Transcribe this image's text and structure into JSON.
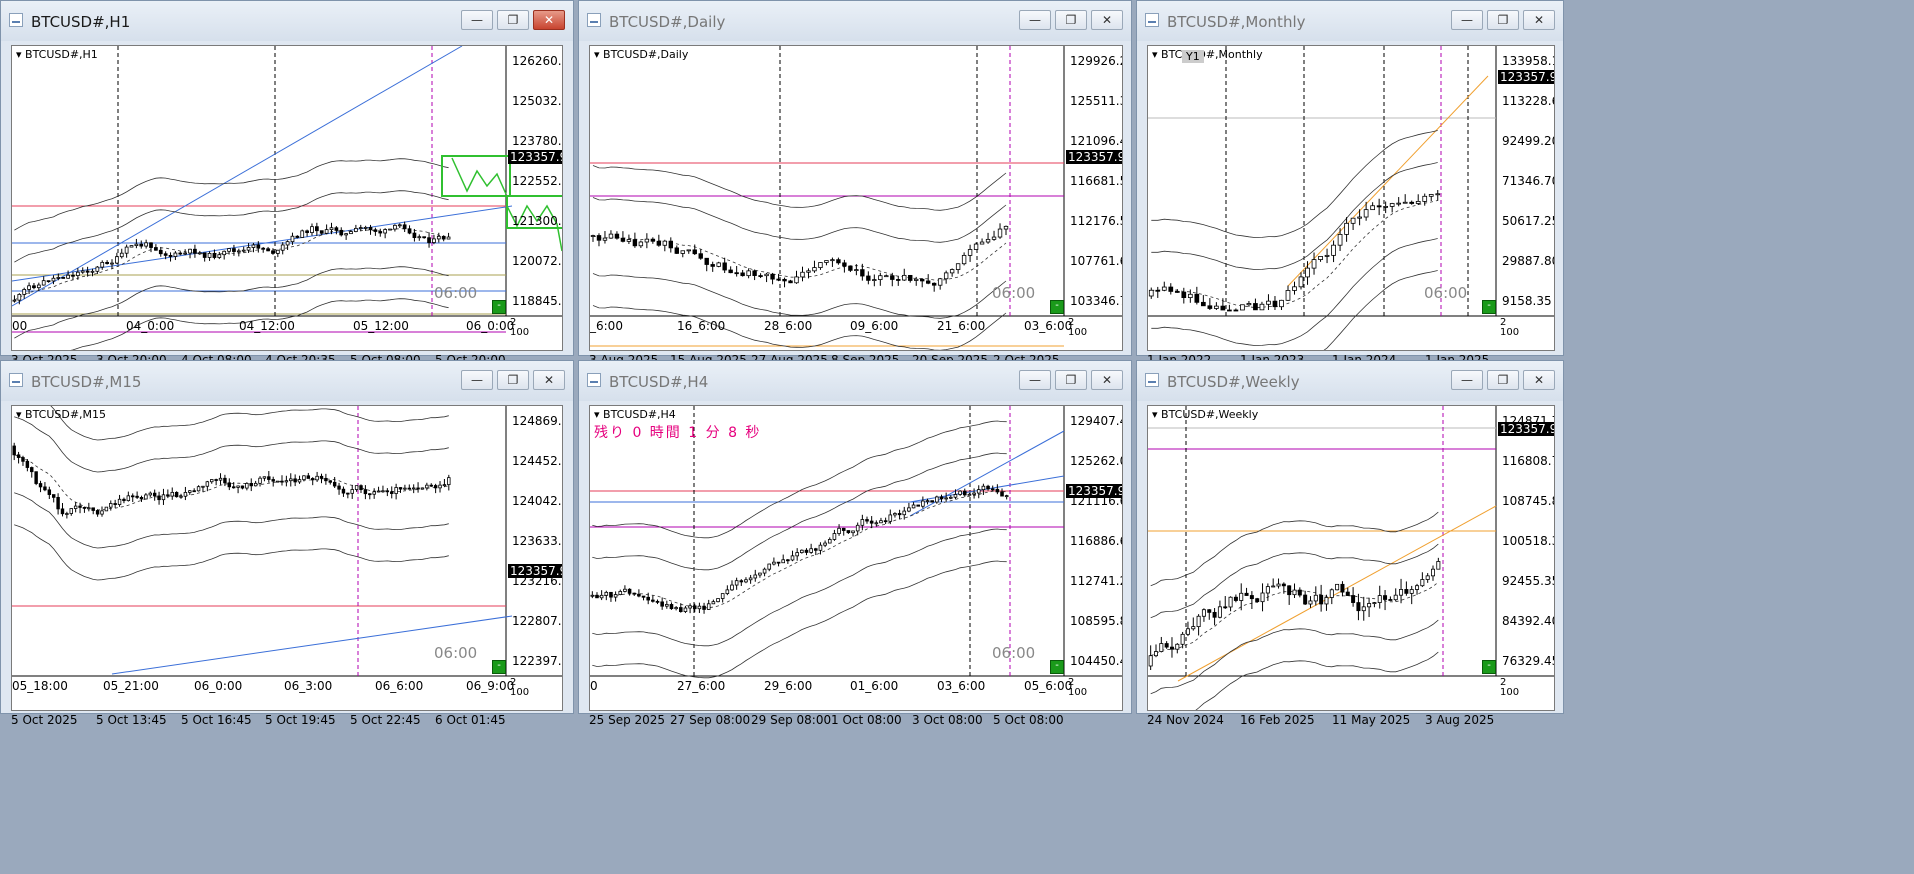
{
  "colors": {
    "up": "#ffffff",
    "down": "#000000",
    "red": "#e53e5a",
    "blue": "#3b6fd8",
    "purple": "#b000b0",
    "olive": "#a8a050",
    "orange": "#f0a030",
    "green": "#30c030"
  },
  "windows": [
    {
      "key": "h1",
      "title": "BTCUSD#,H1",
      "label": "BTCUSD#,H1",
      "active": true,
      "prices": [
        "126260.25",
        "125032.80",
        "123780.30",
        "122552.85",
        "121300.35",
        "120072.90",
        "118845.45"
      ],
      "current": "123357.95",
      "time_labels": [
        "00",
        "04_0:00",
        "04_12:00",
        "05_12:00",
        "06_0:00"
      ],
      "date_labels": [
        "3 Oct 2025",
        "3 Oct 20:00",
        "4 Oct 08:00",
        "4 Oct 20:35",
        "5 Oct 08:00",
        "5 Oct 20:00"
      ],
      "ghost": "06:00",
      "corner": "2\n100",
      "sq": "-"
    },
    {
      "key": "d1",
      "title": "BTCUSD#,Daily",
      "label": "BTCUSD#,Daily",
      "active": false,
      "prices": [
        "129926.20",
        "125511.30",
        "121096.40",
        "116681.50",
        "112176.50",
        "107761.60",
        "103346.70"
      ],
      "current": "123357.95",
      "time_labels": [
        "_6:00",
        "16_6:00",
        "28_6:00",
        "09_6:00",
        "21_6:00",
        "03_6:00"
      ],
      "date_labels": [
        "3 Aug 2025",
        "15 Aug 2025",
        "27 Aug 2025",
        "8 Sep 2025",
        "20 Sep 2025",
        "2 Oct 2025"
      ],
      "ghost": "06:00",
      "corner": "2\n100",
      "sq": "-"
    },
    {
      "key": "mn",
      "title": "BTCUSD#,Monthly",
      "label": "BTCUSD#,Monthly",
      "active": false,
      "prices": [
        "133958.10",
        "113228.65",
        "92499.20",
        "71346.70",
        "50617.25",
        "29887.80",
        "9158.35"
      ],
      "current": "123357.95",
      "time_labels": [],
      "date_labels": [
        "1 Jan 2022",
        "1 Jan 2023",
        "1 Jan 2024",
        "1 Jan 2025"
      ],
      "ghost": "06:00",
      "corner": "2\n100",
      "sq": "-",
      "y1": "Y1"
    },
    {
      "key": "m15",
      "title": "BTCUSD#,M15",
      "label": "BTCUSD#,M15",
      "active": false,
      "prices": [
        "124869.55",
        "124452.05",
        "124042.90",
        "123633.75",
        "123216.25",
        "122807.10",
        "122397.95"
      ],
      "current": "123357.95",
      "time_labels": [
        "05_18:00",
        "05_21:00",
        "06_0:00",
        "06_3:00",
        "06_6:00",
        "06_9:00"
      ],
      "date_labels": [
        "5 Oct 2025",
        "5 Oct 13:45",
        "5 Oct 16:45",
        "5 Oct 19:45",
        "5 Oct 22:45",
        "6 Oct 01:45"
      ],
      "ghost": "06:00",
      "corner": "2\n100",
      "sq": "-"
    },
    {
      "key": "h4",
      "title": "BTCUSD#,H4",
      "label": "BTCUSD#,H4",
      "active": false,
      "prices": [
        "129407.40",
        "125262.00",
        "121116.60",
        "116886.60",
        "112741.20",
        "108595.80",
        "104450.40"
      ],
      "current": "123357.95",
      "time_labels": [
        "0",
        "27_6:00",
        "29_6:00",
        "01_6:00",
        "03_6:00",
        "05_6:00"
      ],
      "date_labels": [
        "25 Sep 2025",
        "27 Sep 08:00",
        "29 Sep 08:00",
        "1 Oct 08:00",
        "3 Oct 08:00",
        "5 Oct 08:00"
      ],
      "ghost": "06:00",
      "corner": "2\n100",
      "sq": "-",
      "countdown": "残り 0 時間 1 分 8 秒"
    },
    {
      "key": "w1",
      "title": "BTCUSD#,Weekly",
      "label": "BTCUSD#,Weekly",
      "active": false,
      "prices": [
        "124871.70",
        "116808.75",
        "108745.80",
        "100518.30",
        "92455.35",
        "84392.40",
        "76329.45"
      ],
      "current": "123357.95",
      "time_labels": [],
      "date_labels": [
        "24 Nov 2024",
        "16 Feb 2025",
        "11 May 2025",
        "3 Aug 2025"
      ],
      "ghost": "",
      "corner": "2\n100",
      "sq": "-"
    }
  ]
}
